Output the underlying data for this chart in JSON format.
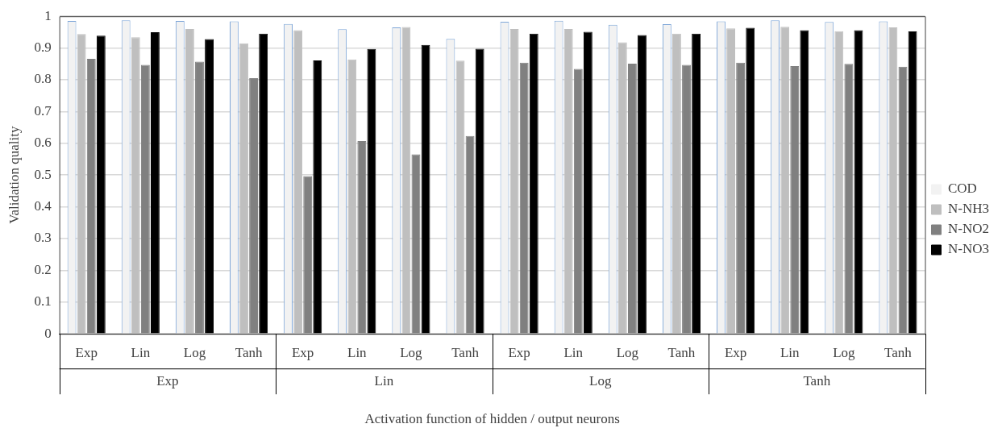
{
  "chart_data": {
    "type": "bar",
    "xlabel": "Activation function of hidden / output neurons",
    "ylabel": "Validation quality",
    "categories": [
      "Exp",
      "Lin",
      "Log",
      "Tanh",
      "Exp",
      "Lin",
      "Log",
      "Tanh",
      "Exp",
      "Lin",
      "Log",
      "Tanh",
      "Exp",
      "Lin",
      "Log",
      "Tanh"
    ],
    "annotations": [
      "Exp",
      "Lin",
      "Log",
      "Tanh"
    ],
    "series": [
      {
        "name": "COD",
        "color": "#f2f2f2",
        "values": [
          0.985,
          0.987,
          0.985,
          0.984,
          0.976,
          0.959,
          0.965,
          0.929,
          0.983,
          0.986,
          0.973,
          0.975,
          0.984,
          0.987,
          0.982,
          0.984
        ]
      },
      {
        "name": "N-NH3",
        "color": "#bfbfbf",
        "values": [
          0.944,
          0.934,
          0.96,
          0.915,
          0.956,
          0.864,
          0.966,
          0.86,
          0.96,
          0.96,
          0.918,
          0.945,
          0.962,
          0.967,
          0.953,
          0.965
        ]
      },
      {
        "name": "N-NO2",
        "color": "#808080",
        "values": [
          0.866,
          0.847,
          0.857,
          0.805,
          0.497,
          0.607,
          0.565,
          0.623,
          0.854,
          0.834,
          0.851,
          0.847,
          0.854,
          0.843,
          0.85,
          0.841
        ]
      },
      {
        "name": "N-NO3",
        "color": "#000000",
        "values": [
          0.939,
          0.95,
          0.928,
          0.945,
          0.861,
          0.897,
          0.91,
          0.898,
          0.945,
          0.951,
          0.941,
          0.945,
          0.964,
          0.956,
          0.956,
          0.952
        ]
      }
    ],
    "ylim": [
      0,
      1
    ],
    "yticks": [
      0,
      0.1,
      0.2,
      0.3,
      0.4,
      0.5,
      0.6,
      0.7,
      0.8,
      0.9,
      1
    ],
    "grid": "y",
    "legend": "right"
  }
}
